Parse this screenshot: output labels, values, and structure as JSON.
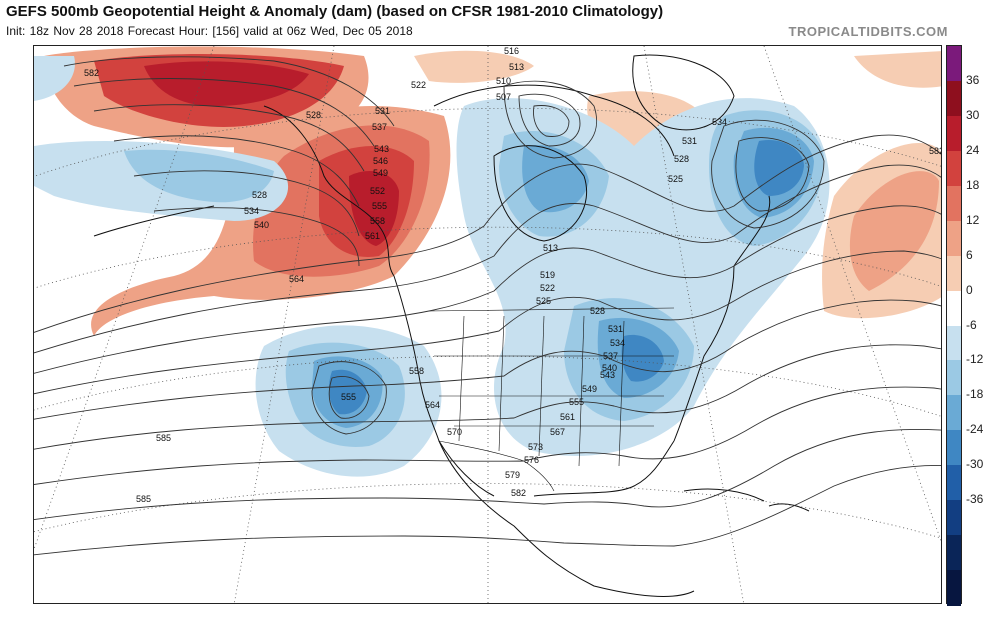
{
  "header": {
    "title": "GEFS 500mb Geopotential Height & Anomaly (dam) (based on CFSR 1981-2010 Climatology)",
    "subtitle": "Init: 18z Nov 28 2018   Forecast Hour: [156]   valid at 06z Wed, Dec 05 2018",
    "credit": "TROPICALTIDBITS.COM"
  },
  "colorbar": {
    "labels": [
      "36",
      "30",
      "24",
      "18",
      "12",
      "6",
      "0",
      "-6",
      "-12",
      "-18",
      "-24",
      "-30",
      "-36"
    ],
    "colors": [
      "#7b1a7b",
      "#8e0f1e",
      "#b81d2c",
      "#d2423e",
      "#e27360",
      "#eea286",
      "#f6cdb3",
      "#ffffff",
      "#c7e0ef",
      "#9bc9e4",
      "#6aaad5",
      "#3f87c3",
      "#215fa8",
      "#123e82",
      "#0a2558",
      "#071640"
    ]
  },
  "contours": {
    "labels": [
      "582",
      "522",
      "516",
      "513",
      "510",
      "507",
      "531",
      "534",
      "528",
      "525",
      "582",
      "528",
      "531",
      "537",
      "543",
      "546",
      "549",
      "552",
      "555",
      "558",
      "561",
      "528",
      "534",
      "540",
      "564",
      "513",
      "519",
      "522",
      "525",
      "528",
      "531",
      "534",
      "537",
      "540",
      "543",
      "549",
      "555",
      "561",
      "567",
      "558",
      "564",
      "570",
      "573",
      "576",
      "579",
      "582",
      "585",
      "585",
      "555"
    ]
  },
  "anomaly_features": [
    {
      "type": "positive",
      "region": "Gulf of Alaska / Aleutians",
      "peak": "24 to 30"
    },
    {
      "type": "positive",
      "region": "Pacific Northwest / British Columbia",
      "peak": "24 to 30"
    },
    {
      "type": "negative",
      "region": "Eastern Canada / Labrador Sea",
      "peak": "-24 to -30"
    },
    {
      "type": "negative",
      "region": "Northeastern US / Great Lakes",
      "peak": "-18 to -24"
    },
    {
      "type": "negative",
      "region": "Eastern Pacific off California",
      "peak": "-18 to -24"
    },
    {
      "type": "negative",
      "region": "Bering Sea",
      "peak": "-6 to -12"
    },
    {
      "type": "positive",
      "region": "Central Atlantic",
      "peak": "6 to 12"
    }
  ]
}
